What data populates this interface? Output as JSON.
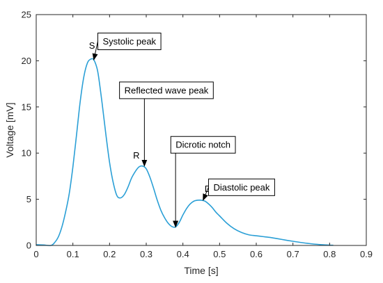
{
  "chart_data": {
    "type": "line",
    "xlabel": "Time [s]",
    "ylabel": "Voltage [mV]",
    "xlim": [
      0,
      0.9
    ],
    "ylim": [
      0,
      25
    ],
    "grid": false,
    "x_ticks": [
      0,
      0.1,
      0.2,
      0.3,
      0.4,
      0.5,
      0.6,
      0.7,
      0.8,
      0.9
    ],
    "x_tick_labels": [
      "0",
      "0.1",
      "0.2",
      "0.3",
      "0.4",
      "0.5",
      "0.6",
      "0.7",
      "0.8",
      "0.9"
    ],
    "y_ticks": [
      0,
      5,
      10,
      15,
      20,
      25
    ],
    "y_tick_labels": [
      "0",
      "5",
      "10",
      "15",
      "20",
      "25"
    ],
    "series_color": "#2a9fd6",
    "series": [
      {
        "x": [
          0,
          0.02,
          0.04,
          0.05,
          0.06,
          0.07,
          0.08,
          0.09,
          0.1,
          0.11,
          0.12,
          0.13,
          0.14,
          0.15,
          0.157,
          0.165,
          0.17,
          0.18,
          0.19,
          0.2,
          0.21,
          0.22,
          0.23,
          0.24,
          0.25,
          0.26,
          0.27,
          0.28,
          0.29,
          0.3,
          0.31,
          0.32,
          0.33,
          0.34,
          0.35,
          0.36,
          0.37,
          0.38,
          0.39,
          0.4,
          0.41,
          0.42,
          0.43,
          0.44,
          0.45,
          0.46,
          0.47,
          0.48,
          0.49,
          0.5,
          0.52,
          0.54,
          0.56,
          0.58,
          0.6,
          0.62,
          0.64,
          0.66,
          0.68,
          0.7,
          0.72,
          0.74,
          0.76,
          0.78,
          0.8,
          0.81
        ],
        "y": [
          0.08,
          0.05,
          0.0,
          0.3,
          0.9,
          2.0,
          3.6,
          5.6,
          8.5,
          12.0,
          15.6,
          18.3,
          19.8,
          20.2,
          20.1,
          19.3,
          18.3,
          15.3,
          12.0,
          9.0,
          6.8,
          5.4,
          5.15,
          5.5,
          6.3,
          7.3,
          8.0,
          8.5,
          8.6,
          8.3,
          7.4,
          6.2,
          4.9,
          3.8,
          3.0,
          2.4,
          2.05,
          2.0,
          2.5,
          3.3,
          4.0,
          4.5,
          4.8,
          4.9,
          4.9,
          4.8,
          4.5,
          4.1,
          3.6,
          3.2,
          2.4,
          1.8,
          1.4,
          1.15,
          1.05,
          0.95,
          0.85,
          0.72,
          0.58,
          0.45,
          0.33,
          0.23,
          0.14,
          0.08,
          0.03,
          0.02
        ]
      }
    ],
    "point_labels": [
      {
        "text": "S",
        "x": 0.152,
        "y": 21.3
      },
      {
        "text": "R",
        "x": 0.273,
        "y": 9.4
      },
      {
        "text": "D",
        "x": 0.468,
        "y": 5.8
      }
    ],
    "annotations": [
      {
        "text": "Systolic peak",
        "tip_x": 0.157,
        "tip_y": 20.1,
        "box_x": 0.254,
        "box_y": 22.1
      },
      {
        "text": "Reflected wave peak",
        "tip_x": 0.295,
        "tip_y": 8.6,
        "box_x": 0.355,
        "box_y": 16.8
      },
      {
        "text": "Dicrotic notch",
        "tip_x": 0.38,
        "tip_y": 2.0,
        "box_x": 0.455,
        "box_y": 10.9
      },
      {
        "text": "Diastolic peak",
        "tip_x": 0.455,
        "tip_y": 4.9,
        "box_x": 0.56,
        "box_y": 6.3
      }
    ]
  }
}
